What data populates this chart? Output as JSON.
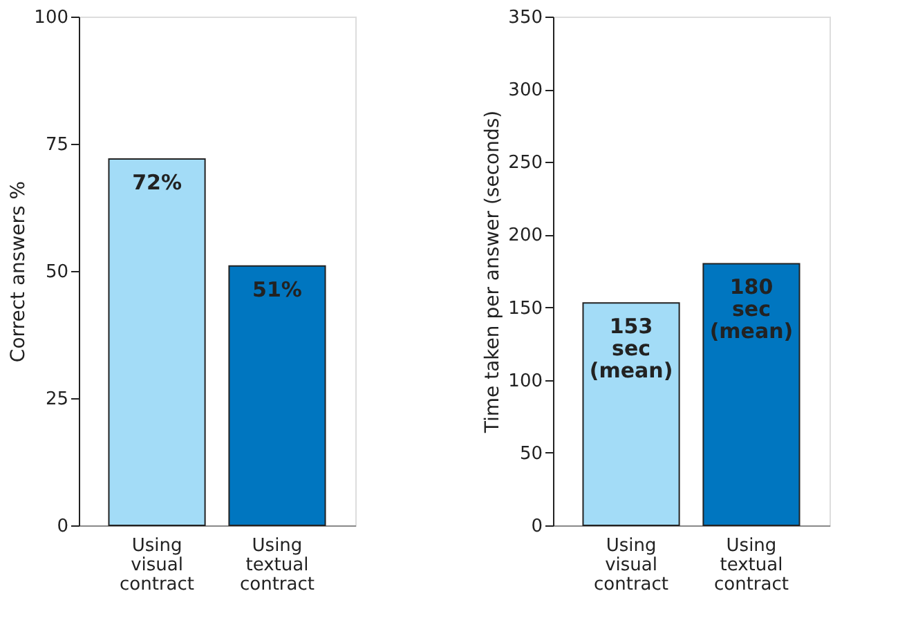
{
  "chart_data": [
    {
      "type": "bar",
      "ylabel": "Correct answers %",
      "categories": [
        "Using\nvisual\ncontract",
        "Using\ntextual\ncontract"
      ],
      "values": [
        72,
        51
      ],
      "colors": [
        "#a3dcf7",
        "#0076c0"
      ],
      "value_labels": [
        "72%",
        "51%"
      ],
      "ylim": [
        0,
        100
      ],
      "yticks": [
        0,
        25,
        50,
        75,
        100
      ],
      "grid": false
    },
    {
      "type": "bar",
      "ylabel": "Time taken per  answer (seconds)",
      "categories": [
        "Using\nvisual\ncontract",
        "Using\ntextual\ncontract"
      ],
      "values": [
        153,
        180
      ],
      "colors": [
        "#a3dcf7",
        "#0076c0"
      ],
      "value_labels": [
        "153\nsec\n(mean)",
        "180\nsec\n(mean)"
      ],
      "ylim": [
        0,
        350
      ],
      "yticks": [
        0,
        50,
        100,
        150,
        200,
        250,
        300,
        350
      ],
      "grid": false
    }
  ]
}
